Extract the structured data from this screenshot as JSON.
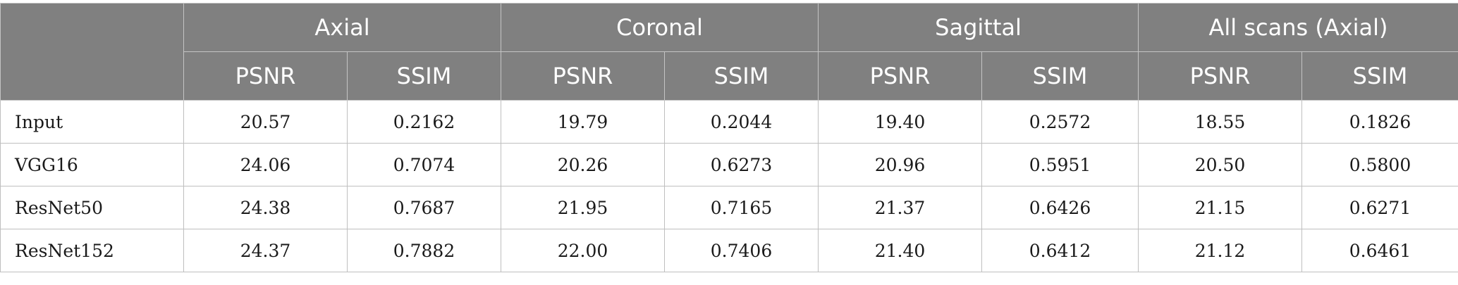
{
  "table": {
    "groups": [
      "Axial",
      "Coronal",
      "Sagittal",
      "All scans (Axial)"
    ],
    "metrics": [
      "PSNR",
      "SSIM"
    ],
    "rows": [
      {
        "label": "Input",
        "values": [
          "20.57",
          "0.2162",
          "19.79",
          "0.2044",
          "19.40",
          "0.2572",
          "18.55",
          "0.1826"
        ]
      },
      {
        "label": "VGG16",
        "values": [
          "24.06",
          "0.7074",
          "20.26",
          "0.6273",
          "20.96",
          "0.5951",
          "20.50",
          "0.5800"
        ]
      },
      {
        "label": "ResNet50",
        "values": [
          "24.38",
          "0.7687",
          "21.95",
          "0.7165",
          "21.37",
          "0.6426",
          "21.15",
          "0.6271"
        ]
      },
      {
        "label": "ResNet152",
        "values": [
          "24.37",
          "0.7882",
          "22.00",
          "0.7406",
          "21.40",
          "0.6412",
          "21.12",
          "0.6461"
        ]
      }
    ]
  }
}
